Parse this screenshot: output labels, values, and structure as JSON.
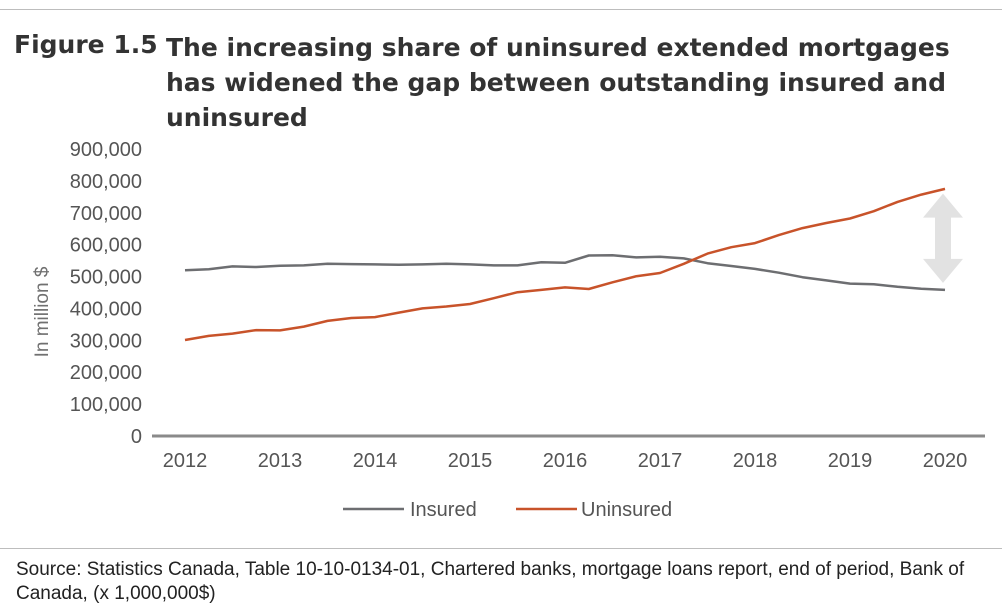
{
  "figure": {
    "label": "Figure 1.5",
    "title": "The increasing share of uninsured extended mortgages has widened the gap between outstanding insured and uninsured"
  },
  "source": "Source: Statistics Canada, Table 10-10-0134-01, Chartered banks, mortgage loans report, end of period, Bank of Canada, (x 1,000,000$)",
  "colors": {
    "insured": "#6d6e71",
    "uninsured": "#c8532a",
    "arrow": "#e2e2e2",
    "axis": "#707070"
  },
  "chart_data": {
    "type": "line",
    "title": "",
    "xlabel": "",
    "ylabel": "In million $",
    "ylim": [
      0,
      900000
    ],
    "xlim": [
      2012,
      2020
    ],
    "yticks": [
      0,
      100000,
      200000,
      300000,
      400000,
      500000,
      600000,
      700000,
      800000,
      900000
    ],
    "ytick_labels": [
      "0",
      "100,000",
      "200,000",
      "300,000",
      "400,000",
      "500,000",
      "600,000",
      "700,000",
      "800,000",
      "900,000"
    ],
    "xticks": [
      "2012",
      "2013",
      "2014",
      "2015",
      "2016",
      "2017",
      "2018",
      "2019",
      "2020"
    ],
    "grid": false,
    "legend_position": "bottom",
    "annotation": "double-headed arrow marking the gap between series in 2020",
    "series": [
      {
        "name": "Insured",
        "x": [
          2012,
          2012.25,
          2012.5,
          2012.75,
          2013,
          2013.25,
          2013.5,
          2013.75,
          2014,
          2014.25,
          2014.5,
          2014.75,
          2015,
          2015.25,
          2015.5,
          2015.75,
          2016,
          2016.25,
          2016.5,
          2016.75,
          2017,
          2017.25,
          2017.5,
          2017.75,
          2018,
          2018.25,
          2018.5,
          2018.75,
          2019,
          2019.25,
          2019.5,
          2019.75,
          2020
        ],
        "values": [
          520000,
          523000,
          532000,
          530000,
          534000,
          535000,
          540000,
          539000,
          538000,
          537000,
          538000,
          540000,
          538000,
          535000,
          535000,
          545000,
          543000,
          566000,
          567000,
          560000,
          562000,
          557000,
          542000,
          533000,
          524000,
          512000,
          498000,
          488000,
          478000,
          476000,
          468000,
          462000,
          458000
        ]
      },
      {
        "name": "Uninsured",
        "x": [
          2012,
          2012.25,
          2012.5,
          2012.75,
          2013,
          2013.25,
          2013.5,
          2013.75,
          2014,
          2014.25,
          2014.5,
          2014.75,
          2015,
          2015.25,
          2015.5,
          2015.75,
          2016,
          2016.25,
          2016.5,
          2016.75,
          2017,
          2017.25,
          2017.5,
          2017.75,
          2018,
          2018.25,
          2018.5,
          2018.75,
          2019,
          2019.25,
          2019.5,
          2019.75,
          2020
        ],
        "values": [
          301000,
          314000,
          321000,
          332000,
          331000,
          343000,
          361000,
          370000,
          373000,
          387000,
          400000,
          406000,
          414000,
          432000,
          451000,
          458000,
          466000,
          461000,
          482000,
          501000,
          511000,
          540000,
          572000,
          592000,
          605000,
          630000,
          652000,
          668000,
          682000,
          705000,
          734000,
          757000,
          775000
        ]
      }
    ]
  }
}
